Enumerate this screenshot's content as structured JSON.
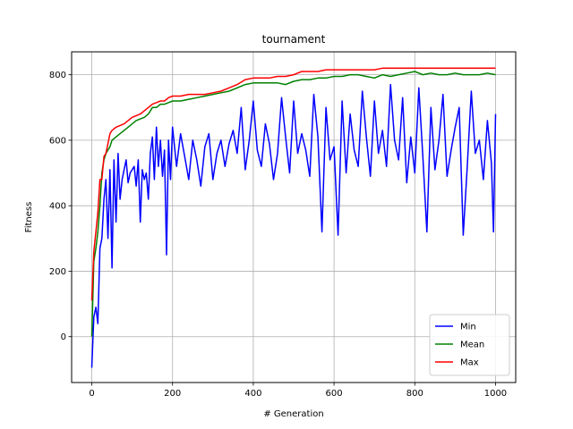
{
  "chart_data": {
    "type": "line",
    "title": "tournament",
    "xlabel": "# Generation",
    "ylabel": "Fitness",
    "xlim": [
      -50,
      1050
    ],
    "ylim": [
      -140,
      870
    ],
    "xticks": [
      0,
      200,
      400,
      600,
      800,
      1000
    ],
    "yticks": [
      0,
      200,
      400,
      600,
      800
    ],
    "grid": true,
    "legend_position": "lower-right",
    "series": [
      {
        "name": "Min",
        "color": "#0000ff",
        "x": [
          0,
          5,
          10,
          15,
          20,
          25,
          30,
          35,
          40,
          45,
          50,
          55,
          60,
          65,
          70,
          75,
          80,
          85,
          90,
          95,
          100,
          105,
          110,
          115,
          120,
          125,
          130,
          135,
          140,
          145,
          150,
          155,
          160,
          165,
          170,
          175,
          180,
          185,
          190,
          195,
          200,
          210,
          220,
          230,
          240,
          250,
          260,
          270,
          280,
          290,
          300,
          310,
          320,
          330,
          340,
          350,
          360,
          370,
          380,
          390,
          400,
          410,
          420,
          430,
          440,
          450,
          460,
          470,
          480,
          490,
          500,
          510,
          520,
          530,
          540,
          550,
          560,
          570,
          580,
          590,
          600,
          610,
          620,
          630,
          640,
          650,
          660,
          670,
          680,
          690,
          700,
          710,
          720,
          730,
          740,
          750,
          760,
          770,
          780,
          790,
          800,
          810,
          820,
          830,
          840,
          850,
          860,
          870,
          880,
          890,
          900,
          910,
          920,
          930,
          940,
          950,
          960,
          970,
          980,
          990,
          995,
          1000
        ],
        "y": [
          -95,
          60,
          90,
          40,
          270,
          300,
          420,
          480,
          300,
          510,
          210,
          540,
          350,
          560,
          420,
          480,
          510,
          540,
          470,
          500,
          510,
          520,
          460,
          540,
          350,
          510,
          480,
          500,
          420,
          560,
          610,
          480,
          640,
          520,
          600,
          490,
          570,
          250,
          600,
          480,
          640,
          520,
          620,
          550,
          480,
          600,
          540,
          460,
          580,
          620,
          480,
          560,
          600,
          520,
          590,
          630,
          560,
          700,
          510,
          600,
          720,
          570,
          520,
          650,
          590,
          480,
          560,
          730,
          610,
          500,
          720,
          560,
          620,
          570,
          490,
          740,
          610,
          320,
          700,
          540,
          580,
          310,
          720,
          500,
          680,
          570,
          520,
          750,
          610,
          490,
          720,
          560,
          630,
          520,
          770,
          600,
          540,
          730,
          470,
          610,
          500,
          760,
          550,
          320,
          700,
          510,
          600,
          740,
          490,
          570,
          640,
          700,
          310,
          520,
          750,
          560,
          600,
          480,
          660,
          530,
          320,
          680
        ]
      },
      {
        "name": "Mean",
        "color": "#008000",
        "x": [
          0,
          5,
          10,
          15,
          20,
          25,
          30,
          35,
          40,
          45,
          50,
          60,
          70,
          80,
          90,
          100,
          110,
          120,
          130,
          140,
          150,
          160,
          170,
          180,
          190,
          200,
          220,
          240,
          260,
          280,
          300,
          320,
          340,
          360,
          380,
          400,
          420,
          440,
          460,
          480,
          500,
          520,
          540,
          560,
          580,
          600,
          620,
          640,
          660,
          680,
          700,
          720,
          740,
          760,
          780,
          800,
          820,
          840,
          860,
          880,
          900,
          920,
          940,
          960,
          980,
          1000
        ],
        "y": [
          0,
          230,
          270,
          320,
          400,
          500,
          540,
          560,
          570,
          580,
          600,
          610,
          620,
          630,
          640,
          650,
          660,
          665,
          670,
          680,
          700,
          700,
          710,
          710,
          715,
          720,
          720,
          725,
          730,
          735,
          740,
          745,
          750,
          760,
          770,
          775,
          775,
          775,
          775,
          770,
          780,
          785,
          785,
          790,
          790,
          795,
          795,
          800,
          800,
          795,
          790,
          800,
          795,
          800,
          805,
          810,
          800,
          805,
          800,
          800,
          805,
          800,
          800,
          800,
          805,
          800
        ]
      },
      {
        "name": "Max",
        "color": "#ff0000",
        "x": [
          0,
          5,
          10,
          15,
          20,
          25,
          30,
          35,
          40,
          45,
          50,
          60,
          70,
          80,
          90,
          100,
          110,
          120,
          130,
          140,
          150,
          160,
          170,
          180,
          190,
          200,
          220,
          240,
          260,
          280,
          300,
          320,
          340,
          360,
          380,
          400,
          420,
          440,
          460,
          480,
          500,
          520,
          540,
          560,
          580,
          600,
          620,
          640,
          660,
          680,
          700,
          720,
          740,
          760,
          780,
          800,
          820,
          840,
          860,
          880,
          900,
          920,
          940,
          960,
          980,
          1000
        ],
        "y": [
          110,
          260,
          320,
          380,
          480,
          480,
          550,
          560,
          590,
          620,
          630,
          640,
          645,
          650,
          660,
          670,
          675,
          680,
          690,
          700,
          710,
          715,
          720,
          720,
          730,
          735,
          735,
          740,
          740,
          740,
          745,
          750,
          760,
          770,
          785,
          790,
          790,
          790,
          795,
          795,
          800,
          810,
          810,
          810,
          815,
          815,
          815,
          815,
          815,
          815,
          815,
          820,
          820,
          820,
          820,
          820,
          820,
          820,
          820,
          820,
          820,
          820,
          820,
          820,
          820,
          820
        ]
      }
    ]
  }
}
